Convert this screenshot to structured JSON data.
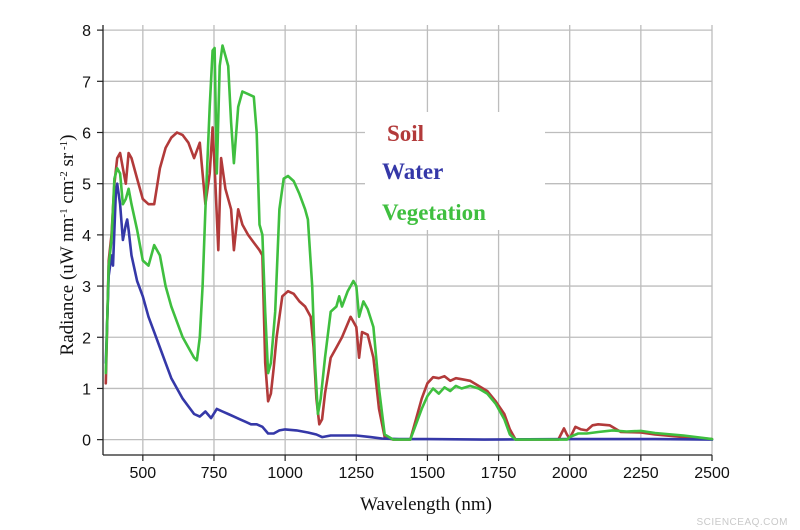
{
  "chart_data": {
    "type": "line",
    "xlabel": "Wavelength (nm)",
    "ylabel": "Radiance (uW nm",
    "ylabel_sup1": "-1",
    "ylabel_mid": " cm",
    "ylabel_sup2": "-2",
    "ylabel_mid2": " sr",
    "ylabel_sup3": " -1",
    "ylabel_end": ")",
    "xlim": [
      360,
      2500
    ],
    "ylim": [
      -0.3,
      8.1
    ],
    "x_ticks": [
      "500",
      "750",
      "1000",
      "1250",
      "1500",
      "1750",
      "2000",
      "2250",
      "2500"
    ],
    "y_ticks": [
      "0",
      "1",
      "2",
      "3",
      "4",
      "5",
      "6",
      "7",
      "8"
    ],
    "grid": true,
    "legend_placement": "upper-center",
    "series": [
      {
        "name": "Soil",
        "color": "#b23a3a",
        "points": [
          [
            370,
            1.1
          ],
          [
            380,
            3.5
          ],
          [
            390,
            4.0
          ],
          [
            400,
            5.0
          ],
          [
            410,
            5.5
          ],
          [
            420,
            5.6
          ],
          [
            430,
            5.3
          ],
          [
            440,
            5.0
          ],
          [
            450,
            5.6
          ],
          [
            460,
            5.5
          ],
          [
            480,
            5.1
          ],
          [
            500,
            4.7
          ],
          [
            520,
            4.6
          ],
          [
            540,
            4.6
          ],
          [
            560,
            5.3
          ],
          [
            580,
            5.7
          ],
          [
            600,
            5.9
          ],
          [
            620,
            6.0
          ],
          [
            640,
            5.95
          ],
          [
            660,
            5.8
          ],
          [
            680,
            5.5
          ],
          [
            700,
            5.8
          ],
          [
            720,
            4.6
          ],
          [
            735,
            5.2
          ],
          [
            745,
            6.1
          ],
          [
            755,
            5.0
          ],
          [
            765,
            3.7
          ],
          [
            775,
            5.5
          ],
          [
            790,
            4.9
          ],
          [
            810,
            4.5
          ],
          [
            820,
            3.7
          ],
          [
            835,
            4.5
          ],
          [
            850,
            4.2
          ],
          [
            870,
            4.0
          ],
          [
            890,
            3.85
          ],
          [
            910,
            3.7
          ],
          [
            920,
            3.6
          ],
          [
            930,
            1.5
          ],
          [
            940,
            0.75
          ],
          [
            950,
            0.9
          ],
          [
            960,
            1.4
          ],
          [
            970,
            2.0
          ],
          [
            990,
            2.8
          ],
          [
            1010,
            2.9
          ],
          [
            1030,
            2.85
          ],
          [
            1050,
            2.7
          ],
          [
            1070,
            2.6
          ],
          [
            1090,
            2.4
          ],
          [
            1100,
            1.8
          ],
          [
            1110,
            0.8
          ],
          [
            1120,
            0.3
          ],
          [
            1130,
            0.4
          ],
          [
            1140,
            0.9
          ],
          [
            1160,
            1.6
          ],
          [
            1180,
            1.8
          ],
          [
            1200,
            2.0
          ],
          [
            1230,
            2.4
          ],
          [
            1250,
            2.2
          ],
          [
            1260,
            1.6
          ],
          [
            1270,
            2.1
          ],
          [
            1290,
            2.05
          ],
          [
            1310,
            1.6
          ],
          [
            1330,
            0.6
          ],
          [
            1350,
            0.05
          ],
          [
            1380,
            0.0
          ],
          [
            1440,
            0.0
          ],
          [
            1460,
            0.4
          ],
          [
            1480,
            0.8
          ],
          [
            1500,
            1.1
          ],
          [
            1520,
            1.22
          ],
          [
            1540,
            1.2
          ],
          [
            1560,
            1.24
          ],
          [
            1580,
            1.15
          ],
          [
            1600,
            1.2
          ],
          [
            1620,
            1.18
          ],
          [
            1650,
            1.15
          ],
          [
            1680,
            1.05
          ],
          [
            1710,
            0.95
          ],
          [
            1740,
            0.75
          ],
          [
            1770,
            0.5
          ],
          [
            1790,
            0.2
          ],
          [
            1810,
            0.0
          ],
          [
            1960,
            0.0
          ],
          [
            1980,
            0.22
          ],
          [
            1990,
            0.1
          ],
          [
            2000,
            0.02
          ],
          [
            2020,
            0.25
          ],
          [
            2040,
            0.2
          ],
          [
            2060,
            0.18
          ],
          [
            2080,
            0.28
          ],
          [
            2100,
            0.3
          ],
          [
            2140,
            0.28
          ],
          [
            2180,
            0.15
          ],
          [
            2250,
            0.14
          ],
          [
            2300,
            0.1
          ],
          [
            2400,
            0.05
          ],
          [
            2500,
            0.01
          ]
        ]
      },
      {
        "name": "Water",
        "color": "#3538a8",
        "points": [
          [
            370,
            1.5
          ],
          [
            380,
            3.2
          ],
          [
            390,
            3.6
          ],
          [
            395,
            3.4
          ],
          [
            405,
            4.8
          ],
          [
            410,
            5.0
          ],
          [
            420,
            4.6
          ],
          [
            430,
            3.9
          ],
          [
            440,
            4.2
          ],
          [
            445,
            4.3
          ],
          [
            450,
            4.1
          ],
          [
            460,
            3.6
          ],
          [
            480,
            3.1
          ],
          [
            500,
            2.8
          ],
          [
            520,
            2.4
          ],
          [
            540,
            2.1
          ],
          [
            560,
            1.8
          ],
          [
            580,
            1.5
          ],
          [
            600,
            1.2
          ],
          [
            620,
            1.0
          ],
          [
            640,
            0.8
          ],
          [
            660,
            0.65
          ],
          [
            680,
            0.5
          ],
          [
            700,
            0.45
          ],
          [
            720,
            0.55
          ],
          [
            740,
            0.42
          ],
          [
            760,
            0.6
          ],
          [
            780,
            0.55
          ],
          [
            800,
            0.5
          ],
          [
            820,
            0.45
          ],
          [
            840,
            0.4
          ],
          [
            860,
            0.35
          ],
          [
            880,
            0.3
          ],
          [
            900,
            0.3
          ],
          [
            920,
            0.25
          ],
          [
            940,
            0.12
          ],
          [
            960,
            0.12
          ],
          [
            980,
            0.18
          ],
          [
            1000,
            0.2
          ],
          [
            1040,
            0.18
          ],
          [
            1080,
            0.14
          ],
          [
            1110,
            0.1
          ],
          [
            1130,
            0.05
          ],
          [
            1160,
            0.08
          ],
          [
            1200,
            0.08
          ],
          [
            1250,
            0.08
          ],
          [
            1300,
            0.05
          ],
          [
            1340,
            0.02
          ],
          [
            1400,
            0.01
          ],
          [
            1500,
            0.01
          ],
          [
            1700,
            0.0
          ],
          [
            2000,
            0.01
          ],
          [
            2300,
            0.01
          ],
          [
            2500,
            0.0
          ]
        ]
      },
      {
        "name": "Vegetation",
        "color": "#3fbf3f",
        "points": [
          [
            370,
            1.3
          ],
          [
            380,
            3.4
          ],
          [
            390,
            3.9
          ],
          [
            400,
            5.1
          ],
          [
            410,
            5.3
          ],
          [
            420,
            5.2
          ],
          [
            430,
            4.6
          ],
          [
            440,
            4.7
          ],
          [
            450,
            4.9
          ],
          [
            460,
            4.6
          ],
          [
            480,
            4.1
          ],
          [
            500,
            3.5
          ],
          [
            520,
            3.4
          ],
          [
            540,
            3.8
          ],
          [
            560,
            3.6
          ],
          [
            580,
            3.0
          ],
          [
            600,
            2.6
          ],
          [
            620,
            2.3
          ],
          [
            640,
            2.0
          ],
          [
            660,
            1.8
          ],
          [
            680,
            1.6
          ],
          [
            690,
            1.55
          ],
          [
            700,
            2.0
          ],
          [
            710,
            3.0
          ],
          [
            720,
            4.5
          ],
          [
            735,
            6.5
          ],
          [
            745,
            7.6
          ],
          [
            752,
            7.65
          ],
          [
            760,
            5.2
          ],
          [
            770,
            7.3
          ],
          [
            780,
            7.7
          ],
          [
            790,
            7.5
          ],
          [
            800,
            7.3
          ],
          [
            810,
            6.2
          ],
          [
            820,
            5.4
          ],
          [
            835,
            6.5
          ],
          [
            850,
            6.8
          ],
          [
            870,
            6.75
          ],
          [
            890,
            6.7
          ],
          [
            900,
            6.0
          ],
          [
            910,
            4.2
          ],
          [
            920,
            4.0
          ],
          [
            930,
            2.5
          ],
          [
            940,
            1.3
          ],
          [
            950,
            1.5
          ],
          [
            965,
            2.5
          ],
          [
            980,
            4.5
          ],
          [
            995,
            5.1
          ],
          [
            1010,
            5.15
          ],
          [
            1030,
            5.05
          ],
          [
            1050,
            4.8
          ],
          [
            1070,
            4.5
          ],
          [
            1080,
            4.3
          ],
          [
            1095,
            3.0
          ],
          [
            1105,
            1.5
          ],
          [
            1115,
            0.5
          ],
          [
            1125,
            0.8
          ],
          [
            1140,
            1.6
          ],
          [
            1160,
            2.5
          ],
          [
            1180,
            2.6
          ],
          [
            1190,
            2.8
          ],
          [
            1200,
            2.6
          ],
          [
            1220,
            2.9
          ],
          [
            1240,
            3.1
          ],
          [
            1250,
            3.0
          ],
          [
            1260,
            2.4
          ],
          [
            1275,
            2.7
          ],
          [
            1290,
            2.55
          ],
          [
            1310,
            2.2
          ],
          [
            1330,
            1.0
          ],
          [
            1350,
            0.1
          ],
          [
            1380,
            0.0
          ],
          [
            1440,
            0.0
          ],
          [
            1460,
            0.3
          ],
          [
            1480,
            0.6
          ],
          [
            1500,
            0.85
          ],
          [
            1520,
            1.0
          ],
          [
            1540,
            0.9
          ],
          [
            1560,
            1.02
          ],
          [
            1580,
            0.95
          ],
          [
            1600,
            1.05
          ],
          [
            1620,
            1.0
          ],
          [
            1650,
            1.05
          ],
          [
            1680,
            1.0
          ],
          [
            1710,
            0.9
          ],
          [
            1740,
            0.7
          ],
          [
            1770,
            0.4
          ],
          [
            1790,
            0.1
          ],
          [
            1810,
            0.0
          ],
          [
            1960,
            0.0
          ],
          [
            1990,
            0.0
          ],
          [
            2000,
            0.05
          ],
          [
            2030,
            0.12
          ],
          [
            2060,
            0.12
          ],
          [
            2100,
            0.15
          ],
          [
            2150,
            0.18
          ],
          [
            2200,
            0.16
          ],
          [
            2250,
            0.17
          ],
          [
            2300,
            0.13
          ],
          [
            2400,
            0.08
          ],
          [
            2500,
            0.01
          ]
        ]
      }
    ]
  },
  "watermark": "SCIENCEAQ.COM"
}
